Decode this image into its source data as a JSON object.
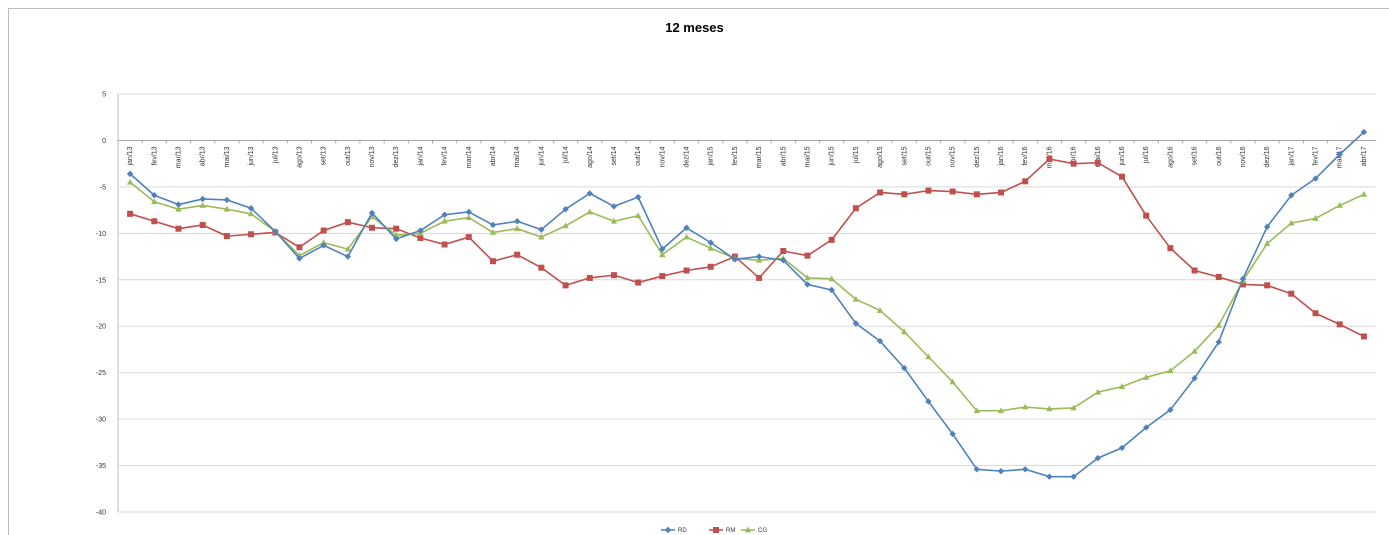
{
  "chart_data": {
    "type": "line",
    "title": "12 meses",
    "xlabel": "",
    "ylabel": "",
    "ylim": [
      -40,
      5
    ],
    "y_ticks": [
      5,
      0,
      -5,
      -10,
      -15,
      -20,
      -25,
      -30,
      -35,
      -40
    ],
    "grid": "horizontal",
    "legend_position": "bottom",
    "categories": [
      "jan/13",
      "fev/13",
      "mar/13",
      "abr/13",
      "mai/13",
      "jun/13",
      "jul/13",
      "ago/13",
      "set/13",
      "out/13",
      "nov/13",
      "dez/13",
      "jan/14",
      "fev/14",
      "mar/14",
      "abr/14",
      "mai/14",
      "jun/14",
      "jul/14",
      "ago/14",
      "set/14",
      "out/14",
      "nov/14",
      "dez/14",
      "jan/15",
      "fev/15",
      "mar/15",
      "abr/15",
      "mai/15",
      "jun/15",
      "jul/15",
      "ago/15",
      "set/15",
      "out/15",
      "nov/15",
      "dez/15",
      "jan/16",
      "fev/16",
      "mar/16",
      "abr/16",
      "mai/16",
      "jun/16",
      "jul/16",
      "ago/16",
      "set/16",
      "out/16",
      "nov/16",
      "dez/16",
      "jan/17",
      "fev/17",
      "mar/17",
      "abr/17"
    ],
    "series": [
      {
        "name": "RD",
        "color": "#4f81bd",
        "marker": "diamond",
        "values": [
          -3.6,
          -5.9,
          -6.9,
          -6.3,
          -6.4,
          -7.3,
          -9.8,
          -12.7,
          -11.3,
          -12.5,
          -7.8,
          -10.6,
          -9.7,
          -8.0,
          -7.7,
          -9.1,
          -8.7,
          -9.6,
          -7.4,
          -5.7,
          -7.1,
          -6.1,
          -11.7,
          -9.4,
          -11.0,
          -12.8,
          -12.5,
          -12.9,
          -15.5,
          -16.1,
          -19.7,
          -21.6,
          -24.5,
          -28.1,
          -31.6,
          -35.4,
          -35.6,
          -35.4,
          -36.2,
          -36.2,
          -34.2,
          -33.1,
          -30.9,
          -29.0,
          -25.6,
          -21.7,
          -14.9,
          -9.3,
          -5.9,
          -4.1,
          -1.5,
          0.9
        ]
      },
      {
        "name": "RM",
        "color": "#c0504d",
        "marker": "square",
        "values": [
          -7.9,
          -8.7,
          -9.5,
          -9.1,
          -10.3,
          -10.1,
          -9.9,
          -11.5,
          -9.7,
          -8.8,
          -9.4,
          -9.5,
          -10.5,
          -11.2,
          -10.4,
          -13.0,
          -12.3,
          -13.7,
          -15.6,
          -14.8,
          -14.5,
          -15.3,
          -14.6,
          -14.0,
          -13.6,
          -12.5,
          -14.8,
          -11.9,
          -12.4,
          -10.7,
          -7.3,
          -5.6,
          -5.8,
          -5.4,
          -5.5,
          -5.8,
          -5.6,
          -4.4,
          -2.0,
          -2.5,
          -2.4,
          -3.9,
          -8.1,
          -11.6,
          -14.0,
          -14.7,
          -15.5,
          -15.6,
          -16.5,
          -18.6,
          -19.8,
          -21.1
        ]
      },
      {
        "name": "CG",
        "color": "#9bbb59",
        "marker": "triangle",
        "values": [
          -4.5,
          -6.6,
          -7.4,
          -7.0,
          -7.4,
          -7.9,
          -9.8,
          -12.4,
          -11.0,
          -11.7,
          -8.2,
          -10.2,
          -10.0,
          -8.7,
          -8.3,
          -9.9,
          -9.5,
          -10.4,
          -9.2,
          -7.7,
          -8.7,
          -8.1,
          -12.3,
          -10.4,
          -11.6,
          -12.7,
          -12.9,
          -12.7,
          -14.8,
          -14.9,
          -17.1,
          -18.3,
          -20.6,
          -23.3,
          -26.0,
          -29.1,
          -29.1,
          -28.7,
          -28.9,
          -28.8,
          -27.1,
          -26.5,
          -25.5,
          -24.8,
          -22.7,
          -19.9,
          -15.1,
          -11.1,
          -8.9,
          -8.4,
          -7.0,
          -5.8
        ]
      }
    ]
  }
}
